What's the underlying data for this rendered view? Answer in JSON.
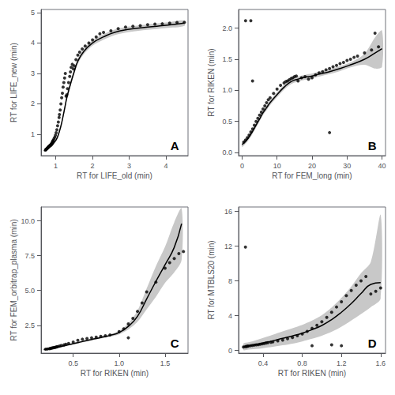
{
  "chart_data": [
    {
      "type": "scatter",
      "xlabel": "RT for LIFE_old (min)",
      "ylabel": "RT for LIFE_new (min)",
      "annotations": [
        "A"
      ],
      "xlim": [
        0.6,
        4.6
      ],
      "ylim": [
        0.3,
        5.1
      ],
      "xticks": [
        1,
        2,
        3,
        4
      ],
      "yticks": [
        1,
        2,
        3,
        4,
        5
      ],
      "grid": false,
      "series": [
        {
          "type": "band",
          "color": "#c8c8c8",
          "x": [
            0.68,
            0.75,
            0.8,
            0.85,
            0.9,
            0.95,
            1.0,
            1.05,
            1.1,
            1.15,
            1.2,
            1.25,
            1.3,
            1.4,
            1.5,
            1.6,
            1.75,
            2.0,
            2.3,
            2.6,
            3.0,
            3.5,
            4.0,
            4.5
          ],
          "ci_low": [
            0.43,
            0.47,
            0.51,
            0.56,
            0.61,
            0.68,
            0.76,
            0.87,
            1.04,
            1.25,
            1.52,
            1.82,
            2.12,
            2.56,
            2.96,
            3.31,
            3.61,
            3.91,
            4.11,
            4.26,
            4.36,
            4.43,
            4.49,
            4.56
          ],
          "ci_high": [
            0.49,
            0.53,
            0.57,
            0.62,
            0.67,
            0.76,
            0.84,
            0.97,
            1.16,
            1.39,
            1.68,
            1.98,
            2.28,
            2.74,
            3.14,
            3.49,
            3.79,
            4.09,
            4.29,
            4.44,
            4.54,
            4.61,
            4.67,
            4.74
          ]
        },
        {
          "type": "scatter",
          "color": "#000000",
          "x": [
            0.72,
            0.73,
            0.74,
            0.75,
            0.76,
            0.77,
            0.78,
            0.79,
            0.8,
            0.81,
            0.82,
            0.83,
            0.84,
            0.85,
            0.86,
            0.87,
            0.88,
            0.89,
            0.9,
            0.91,
            0.92,
            0.93,
            0.95,
            0.97,
            0.99,
            1.01,
            1.03,
            1.05,
            1.07,
            1.09,
            1.1,
            1.12,
            1.14,
            1.16,
            1.18,
            1.2,
            1.22,
            1.24,
            1.26,
            1.28,
            1.3,
            1.32,
            1.35,
            1.38,
            1.4,
            1.42,
            1.45,
            1.48,
            1.5,
            1.55,
            1.6,
            1.65,
            1.72,
            1.8,
            1.9,
            2.0,
            2.1,
            2.2,
            2.3,
            2.5,
            2.7,
            2.9,
            3.1,
            3.3,
            3.5,
            3.7,
            3.9,
            4.1,
            4.3,
            4.5
          ],
          "values": [
            0.48,
            0.5,
            0.51,
            0.52,
            0.53,
            0.54,
            0.56,
            0.57,
            0.58,
            0.6,
            0.61,
            0.62,
            0.63,
            0.64,
            0.65,
            0.67,
            0.68,
            0.7,
            0.72,
            0.75,
            0.78,
            0.8,
            0.85,
            0.9,
            0.97,
            1.05,
            1.15,
            1.28,
            1.4,
            1.55,
            1.65,
            1.8,
            2.0,
            2.2,
            2.35,
            2.55,
            2.7,
            2.85,
            3.0,
            2.25,
            2.3,
            2.5,
            2.7,
            2.9,
            3.05,
            3.2,
            3.3,
            3.15,
            3.25,
            3.45,
            3.6,
            3.7,
            3.8,
            3.9,
            4.0,
            4.1,
            4.2,
            4.3,
            4.35,
            4.4,
            4.47,
            4.52,
            4.55,
            4.57,
            4.6,
            4.62,
            4.63,
            4.65,
            4.67,
            4.68
          ]
        },
        {
          "type": "line",
          "color": "#000000",
          "x": [
            0.68,
            0.75,
            0.8,
            0.85,
            0.9,
            0.95,
            1.0,
            1.05,
            1.1,
            1.15,
            1.2,
            1.25,
            1.3,
            1.4,
            1.5,
            1.6,
            1.75,
            2.0,
            2.3,
            2.6,
            3.0,
            3.5,
            4.0,
            4.5
          ],
          "values": [
            0.46,
            0.5,
            0.54,
            0.59,
            0.64,
            0.72,
            0.8,
            0.92,
            1.1,
            1.32,
            1.6,
            1.9,
            2.2,
            2.65,
            3.05,
            3.4,
            3.7,
            4.0,
            4.2,
            4.35,
            4.45,
            4.52,
            4.58,
            4.65
          ]
        }
      ]
    },
    {
      "type": "scatter",
      "xlabel": "RT for FEM_long (min)",
      "ylabel": "RT for RIKEN (min)",
      "annotations": [
        "B"
      ],
      "xlim": [
        -1,
        41
      ],
      "ylim": [
        -0.05,
        2.3
      ],
      "xticks": [
        0,
        10,
        20,
        30,
        40
      ],
      "yticks": [
        {
          "value": 0.0,
          "label": "0.0"
        },
        0.5,
        {
          "value": 1.0,
          "label": "1.0"
        },
        1.5,
        {
          "value": 2.0,
          "label": "2.0"
        }
      ],
      "grid": false,
      "series": [
        {
          "type": "band",
          "color": "#c8c8c8",
          "x": [
            0.0,
            1.0,
            2.0,
            3.0,
            4.0,
            5.0,
            6.0,
            7.0,
            8.0,
            10.0,
            12.0,
            14.0,
            16.0,
            18.0,
            20.0,
            22.0,
            25.0,
            28.0,
            31.0,
            35.0,
            38.0,
            40.0
          ],
          "ci_low": [
            0.09,
            0.14,
            0.21,
            0.3,
            0.4,
            0.5,
            0.6,
            0.68,
            0.76,
            0.89,
            1.01,
            1.1,
            1.14,
            1.17,
            1.19,
            1.22,
            1.26,
            1.31,
            1.37,
            1.41,
            1.35,
            1.38
          ],
          "ci_high": [
            0.17,
            0.22,
            0.29,
            0.38,
            0.48,
            0.58,
            0.68,
            0.76,
            0.84,
            0.97,
            1.09,
            1.18,
            1.22,
            1.25,
            1.27,
            1.3,
            1.34,
            1.39,
            1.45,
            1.59,
            1.85,
            1.96
          ]
        },
        {
          "type": "scatter",
          "color": "#000000",
          "x": [
            0.5,
            1.0,
            1.5,
            2.0,
            2.5,
            3.0,
            3.5,
            4.0,
            4.5,
            5.0,
            5.5,
            6.0,
            6.5,
            7.0,
            7.5,
            8.0,
            9.0,
            10.0,
            11.0,
            12.0,
            12.5,
            13.0,
            13.5,
            14.0,
            14.5,
            15.0,
            15.5,
            16.0,
            17.0,
            18.0,
            19.0,
            20.0,
            21.0,
            22.0,
            23.0,
            24.0,
            25.0,
            26.0,
            27.0,
            28.0,
            29.0,
            30.0,
            31.0,
            32.0,
            33.0,
            35.0,
            37.0,
            39.0,
            1.0,
            3.0,
            25.0,
            2.5,
            38.0
          ],
          "values": [
            0.17,
            0.2,
            0.24,
            0.28,
            0.33,
            0.38,
            0.44,
            0.5,
            0.55,
            0.6,
            0.65,
            0.7,
            0.75,
            0.8,
            0.85,
            0.88,
            0.95,
            1.02,
            1.08,
            1.12,
            1.14,
            1.15,
            1.17,
            1.19,
            1.2,
            1.22,
            1.23,
            1.15,
            1.2,
            1.22,
            1.18,
            1.2,
            1.25,
            1.28,
            1.3,
            1.33,
            1.35,
            1.38,
            1.4,
            1.43,
            1.45,
            1.48,
            1.5,
            1.53,
            1.55,
            1.6,
            1.65,
            1.7,
            2.12,
            1.15,
            0.32,
            2.12,
            1.92
          ]
        },
        {
          "type": "line",
          "color": "#000000",
          "x": [
            0.0,
            1.0,
            2.0,
            3.0,
            4.0,
            5.0,
            6.0,
            7.0,
            8.0,
            10.0,
            12.0,
            14.0,
            16.0,
            18.0,
            20.0,
            22.0,
            25.0,
            28.0,
            31.0,
            35.0,
            38.0,
            40.0
          ],
          "values": [
            0.13,
            0.18,
            0.25,
            0.34,
            0.44,
            0.54,
            0.64,
            0.72,
            0.8,
            0.93,
            1.05,
            1.14,
            1.18,
            1.21,
            1.23,
            1.26,
            1.3,
            1.35,
            1.41,
            1.5,
            1.6,
            1.67
          ]
        }
      ]
    },
    {
      "type": "scatter",
      "xlabel": "RT for RIKEN (min)",
      "ylabel": "RT for FEM_orbitrap_plasma (min)",
      "annotations": [
        "C"
      ],
      "xlim": [
        0.15,
        1.75
      ],
      "ylim": [
        0.5,
        11.0
      ],
      "xticks": [
        0.5,
        {
          "value": 1.0,
          "label": "1.0"
        },
        1.5
      ],
      "yticks": [
        2.5,
        {
          "value": 5.0,
          "label": "5.0"
        },
        7.5,
        {
          "value": 10.0,
          "label": "10.0"
        }
      ],
      "grid": false,
      "series": [
        {
          "type": "band",
          "color": "#c8c8c8",
          "x": [
            0.18,
            0.22,
            0.26,
            0.3,
            0.35,
            0.4,
            0.5,
            0.6,
            0.7,
            0.8,
            0.9,
            1.0,
            1.1,
            1.2,
            1.3,
            1.4,
            1.5,
            1.6,
            1.68
          ],
          "ci_low": [
            0.7,
            0.74,
            0.78,
            0.83,
            0.89,
            0.96,
            1.12,
            1.27,
            1.41,
            1.55,
            1.68,
            1.85,
            2.2,
            2.75,
            3.65,
            4.55,
            5.55,
            6.3,
            7.2
          ],
          "ci_high": [
            0.82,
            0.86,
            0.9,
            0.95,
            1.01,
            1.08,
            1.24,
            1.39,
            1.55,
            1.69,
            1.86,
            2.11,
            2.64,
            3.55,
            5.15,
            6.75,
            8.15,
            9.9,
            10.9
          ]
        },
        {
          "type": "scatter",
          "color": "#000000",
          "x": [
            0.2,
            0.22,
            0.24,
            0.25,
            0.26,
            0.27,
            0.28,
            0.29,
            0.3,
            0.31,
            0.32,
            0.33,
            0.35,
            0.37,
            0.4,
            0.42,
            0.45,
            0.5,
            0.55,
            0.6,
            0.65,
            0.7,
            0.75,
            0.8,
            0.85,
            0.9,
            1.0,
            1.05,
            1.1,
            1.15,
            1.2,
            1.25,
            1.3,
            1.4,
            1.5,
            1.55,
            1.6,
            1.65,
            1.7,
            1.1
          ],
          "values": [
            0.78,
            0.8,
            0.82,
            0.83,
            0.85,
            0.87,
            0.88,
            0.9,
            0.91,
            0.93,
            0.95,
            0.97,
            1.01,
            1.05,
            1.1,
            1.14,
            1.2,
            1.3,
            1.42,
            1.5,
            1.55,
            1.6,
            1.65,
            1.7,
            1.75,
            1.8,
            2.05,
            2.25,
            2.6,
            3.0,
            3.5,
            4.1,
            4.9,
            5.6,
            6.6,
            7.0,
            7.3,
            7.65,
            7.8,
            1.6
          ]
        },
        {
          "type": "line",
          "color": "#000000",
          "x": [
            0.18,
            0.22,
            0.26,
            0.3,
            0.35,
            0.4,
            0.5,
            0.6,
            0.7,
            0.8,
            0.9,
            1.0,
            1.1,
            1.2,
            1.3,
            1.4,
            1.5,
            1.6,
            1.68
          ],
          "values": [
            0.76,
            0.8,
            0.84,
            0.89,
            0.95,
            1.02,
            1.18,
            1.33,
            1.48,
            1.62,
            1.77,
            1.98,
            2.42,
            3.15,
            4.4,
            5.65,
            6.85,
            8.1,
            9.8
          ]
        }
      ]
    },
    {
      "type": "scatter",
      "xlabel": "RT for RIKEN (min)",
      "ylabel": "RT for MTBLS20 (min)",
      "annotations": [
        "D"
      ],
      "xlim": [
        0.15,
        1.65
      ],
      "ylim": [
        -0.3,
        16.5
      ],
      "xticks": [
        0.4,
        0.8,
        1.2,
        1.6
      ],
      "yticks": [
        0,
        4,
        8,
        12,
        16
      ],
      "grid": false,
      "series": [
        {
          "type": "band",
          "color": "#c8c8c8",
          "x": [
            0.2,
            0.25,
            0.3,
            0.35,
            0.4,
            0.5,
            0.6,
            0.7,
            0.8,
            0.9,
            1.0,
            1.1,
            1.2,
            1.3,
            1.4,
            1.5,
            1.6
          ],
          "ci_low": [
            0.05,
            0.1,
            0.15,
            0.2,
            0.27,
            0.42,
            0.6,
            0.8,
            1.05,
            1.35,
            1.7,
            2.15,
            2.75,
            3.45,
            4.2,
            5.0,
            6.0
          ],
          "ci_high": [
            0.79,
            0.94,
            1.09,
            1.26,
            1.45,
            1.82,
            2.2,
            2.56,
            2.95,
            3.45,
            4.06,
            4.95,
            6.05,
            7.35,
            8.9,
            10.2,
            15.6
          ]
        },
        {
          "type": "scatter",
          "color": "#000000",
          "x": [
            0.2,
            0.22,
            0.23,
            0.24,
            0.25,
            0.27,
            0.29,
            0.31,
            0.33,
            0.35,
            0.37,
            0.39,
            0.41,
            0.43,
            0.45,
            0.48,
            0.5,
            0.55,
            0.6,
            0.65,
            0.7,
            0.75,
            0.8,
            0.85,
            0.9,
            0.95,
            1.0,
            1.05,
            1.1,
            1.15,
            1.2,
            1.25,
            1.3,
            1.35,
            1.4,
            1.45,
            1.5,
            1.55,
            1.6,
            0.9,
            1.1,
            1.2,
            0.22
          ],
          "values": [
            0.4,
            0.45,
            0.48,
            0.5,
            0.52,
            0.55,
            0.58,
            0.62,
            0.65,
            0.68,
            0.72,
            0.76,
            0.8,
            0.85,
            0.9,
            0.95,
            1.0,
            1.1,
            1.2,
            1.35,
            1.5,
            1.7,
            1.9,
            2.2,
            2.55,
            2.9,
            3.3,
            3.8,
            4.4,
            5.0,
            5.6,
            6.3,
            6.9,
            7.5,
            8.0,
            8.5,
            6.5,
            6.8,
            7.2,
            0.55,
            0.65,
            0.55,
            11.9
          ]
        },
        {
          "type": "line",
          "color": "#000000",
          "x": [
            0.2,
            0.25,
            0.3,
            0.35,
            0.4,
            0.5,
            0.6,
            0.7,
            0.8,
            0.9,
            1.0,
            1.1,
            1.2,
            1.3,
            1.4,
            1.5,
            1.6
          ],
          "values": [
            0.42,
            0.52,
            0.62,
            0.73,
            0.86,
            1.12,
            1.4,
            1.68,
            2.0,
            2.4,
            2.88,
            3.55,
            4.4,
            5.4,
            6.55,
            7.6,
            7.8
          ]
        }
      ]
    }
  ]
}
